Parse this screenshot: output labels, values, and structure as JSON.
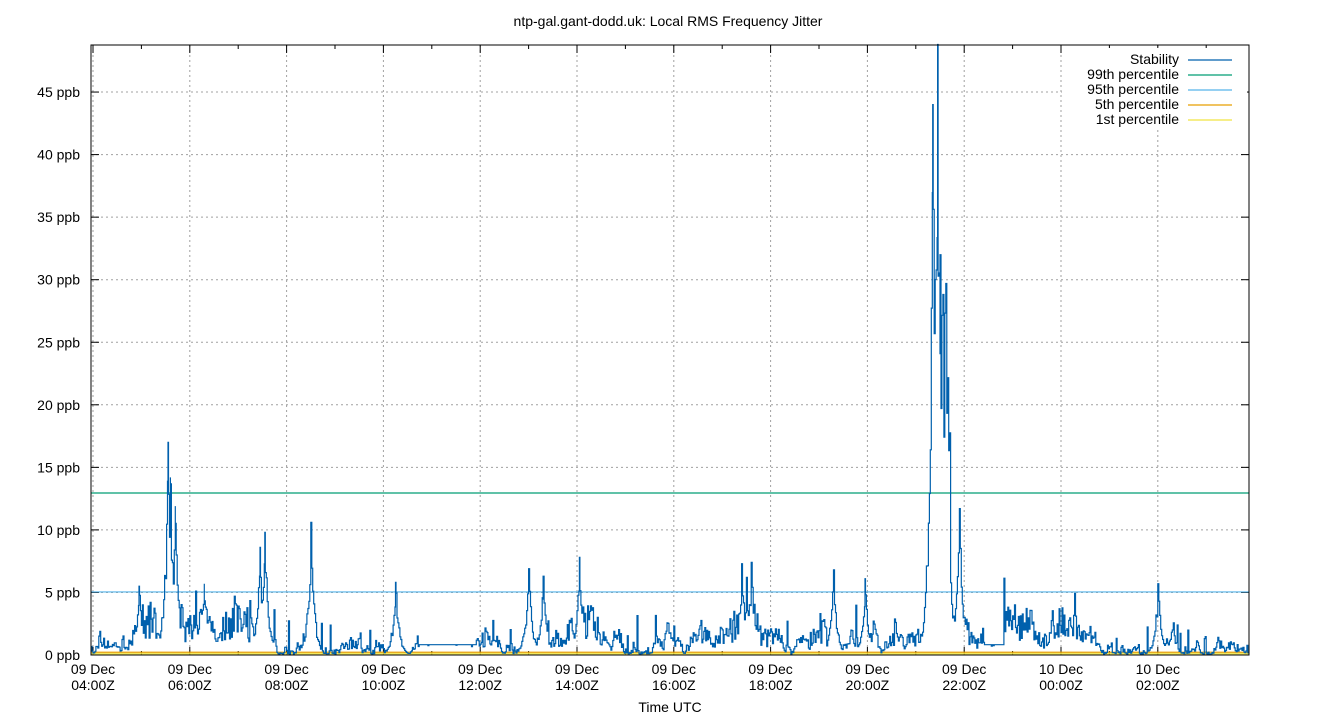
{
  "chart_data": {
    "type": "line",
    "title": "ntp-gal.gant-dodd.uk: Local RMS Frequency Jitter",
    "xlabel": "Time UTC",
    "ylabel": "",
    "ylim": [
      0,
      48.8
    ],
    "xlim_hours": [
      0,
      23.9
    ],
    "grid": true,
    "legend_position": "top-right",
    "y_ticks": [
      "0 ppb",
      "5 ppb",
      "10 ppb",
      "15 ppb",
      "20 ppb",
      "25 ppb",
      "30 ppb",
      "35 ppb",
      "40 ppb",
      "45 ppb"
    ],
    "y_tick_values": [
      0,
      5,
      10,
      15,
      20,
      25,
      30,
      35,
      40,
      45
    ],
    "x_ticks": [
      {
        "line1": "09 Dec",
        "line2": "04:00Z",
        "hour": 0
      },
      {
        "line1": "09 Dec",
        "line2": "06:00Z",
        "hour": 2
      },
      {
        "line1": "09 Dec",
        "line2": "08:00Z",
        "hour": 4
      },
      {
        "line1": "09 Dec",
        "line2": "10:00Z",
        "hour": 6
      },
      {
        "line1": "09 Dec",
        "line2": "12:00Z",
        "hour": 8
      },
      {
        "line1": "09 Dec",
        "line2": "14:00Z",
        "hour": 10
      },
      {
        "line1": "09 Dec",
        "line2": "16:00Z",
        "hour": 12
      },
      {
        "line1": "09 Dec",
        "line2": "18:00Z",
        "hour": 14
      },
      {
        "line1": "09 Dec",
        "line2": "20:00Z",
        "hour": 16
      },
      {
        "line1": "09 Dec",
        "line2": "22:00Z",
        "hour": 18
      },
      {
        "line1": "10 Dec",
        "line2": "00:00Z",
        "hour": 20
      },
      {
        "line1": "10 Dec",
        "line2": "02:00Z",
        "hour": 22
      }
    ],
    "series": [
      {
        "name": "Stability",
        "color": "#0060ad",
        "type": "line",
        "peaks": [
          {
            "hour": 0.95,
            "value": 5.5
          },
          {
            "hour": 1.55,
            "value": 17.0
          },
          {
            "hour": 1.6,
            "value": 14.2
          },
          {
            "hour": 1.7,
            "value": 11.9
          },
          {
            "hour": 2.3,
            "value": 5.7
          },
          {
            "hour": 3.45,
            "value": 8.6
          },
          {
            "hour": 3.55,
            "value": 9.8
          },
          {
            "hour": 4.5,
            "value": 10.6
          },
          {
            "hour": 6.25,
            "value": 5.8
          },
          {
            "hour": 9.0,
            "value": 6.9
          },
          {
            "hour": 9.3,
            "value": 6.3
          },
          {
            "hour": 10.05,
            "value": 7.8
          },
          {
            "hour": 13.4,
            "value": 7.3
          },
          {
            "hour": 13.6,
            "value": 7.4
          },
          {
            "hour": 15.3,
            "value": 6.8
          },
          {
            "hour": 15.95,
            "value": 6.1
          },
          {
            "hour": 17.35,
            "value": 44.0
          },
          {
            "hour": 17.45,
            "value": 48.8
          },
          {
            "hour": 17.5,
            "value": 32.0
          },
          {
            "hour": 17.62,
            "value": 29.7
          },
          {
            "hour": 17.9,
            "value": 11.7
          },
          {
            "hour": 22.0,
            "value": 5.7
          }
        ],
        "baseline_range": [
          0.2,
          3.5
        ]
      },
      {
        "name": "99th percentile",
        "color": "#009e73",
        "value": 12.95
      },
      {
        "name": "95th percentile",
        "color": "#56b4e9",
        "value": 5.04
      },
      {
        "name": "5th percentile",
        "color": "#e69f00",
        "value": 0.22
      },
      {
        "name": "1st percentile",
        "color": "#f0e442",
        "value": 0.1
      }
    ]
  },
  "legend": {
    "items": [
      {
        "label": "Stability",
        "color": "#0060ad"
      },
      {
        "label": "99th percentile",
        "color": "#009e73"
      },
      {
        "label": "95th percentile",
        "color": "#56b4e9"
      },
      {
        "label": "5th percentile",
        "color": "#e69f00"
      },
      {
        "label": "1st percentile",
        "color": "#f0e442"
      }
    ]
  }
}
